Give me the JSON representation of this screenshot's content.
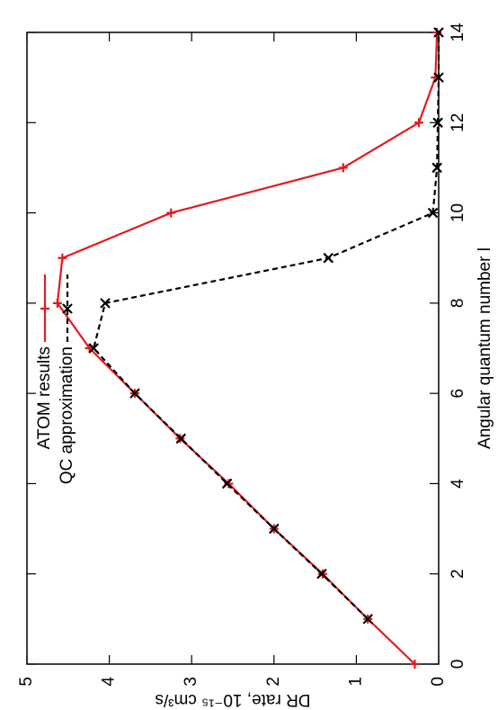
{
  "chart_data": {
    "type": "line",
    "xlabel": "Angular quantum number l",
    "ylabel": "DR rate, 10⁻¹⁵ cm³/s",
    "x": [
      0,
      1,
      2,
      3,
      4,
      5,
      6,
      7,
      8,
      9,
      10,
      11,
      12,
      13,
      14
    ],
    "series": [
      {
        "name": "ATOM results",
        "color": "#e41a1c",
        "dash": false,
        "marker": "plus",
        "values": [
          0.29,
          0.86,
          1.41,
          2.0,
          2.55,
          3.14,
          3.69,
          4.24,
          4.63,
          4.57,
          3.25,
          1.16,
          0.24,
          0.04,
          0.02
        ]
      },
      {
        "name": "QC approximation",
        "color": "#000000",
        "dash": true,
        "marker": "cross",
        "values": [
          null,
          0.86,
          1.42,
          2.0,
          2.57,
          3.13,
          3.69,
          4.19,
          4.05,
          1.34,
          0.07,
          0.02,
          0.01,
          0.0,
          0.0
        ]
      }
    ],
    "xlim": [
      0,
      14
    ],
    "xticks": [
      0,
      2,
      4,
      6,
      8,
      10,
      12,
      14
    ],
    "ylim": [
      0,
      5
    ],
    "yticks": [
      0,
      1,
      2,
      3,
      4,
      5
    ],
    "legend": "upper left",
    "rotation": -90
  }
}
